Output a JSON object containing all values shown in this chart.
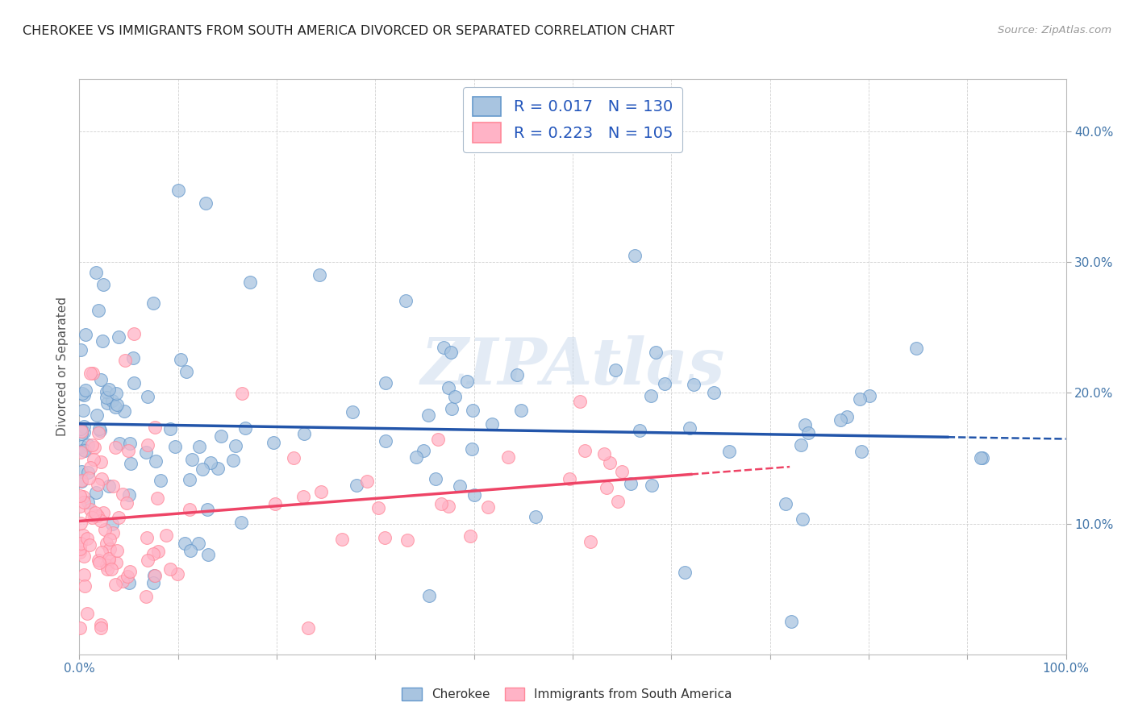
{
  "title": "CHEROKEE VS IMMIGRANTS FROM SOUTH AMERICA DIVORCED OR SEPARATED CORRELATION CHART",
  "source": "Source: ZipAtlas.com",
  "ylabel": "Divorced or Separated",
  "xlim": [
    0.0,
    1.0
  ],
  "ylim": [
    0.0,
    0.44
  ],
  "xticks": [
    0.0,
    0.1,
    0.2,
    0.3,
    0.4,
    0.5,
    0.6,
    0.7,
    0.8,
    0.9,
    1.0
  ],
  "xticklabels": [
    "0.0%",
    "",
    "",
    "",
    "",
    "",
    "",
    "",
    "",
    "",
    "100.0%"
  ],
  "yticks": [
    0.1,
    0.2,
    0.3,
    0.4
  ],
  "yticklabels": [
    "10.0%",
    "20.0%",
    "30.0%",
    "40.0%"
  ],
  "blue_fill": "#A8C4E0",
  "blue_edge": "#6699CC",
  "pink_fill": "#FFB3C6",
  "pink_edge": "#FF8899",
  "blue_line": "#2255AA",
  "pink_line": "#EE4466",
  "legend_R_blue": "0.017",
  "legend_N_blue": "130",
  "legend_R_pink": "0.223",
  "legend_N_pink": "105",
  "watermark": "ZIPAtlas",
  "background_color": "#FFFFFF",
  "grid_color": "#CCCCCC"
}
